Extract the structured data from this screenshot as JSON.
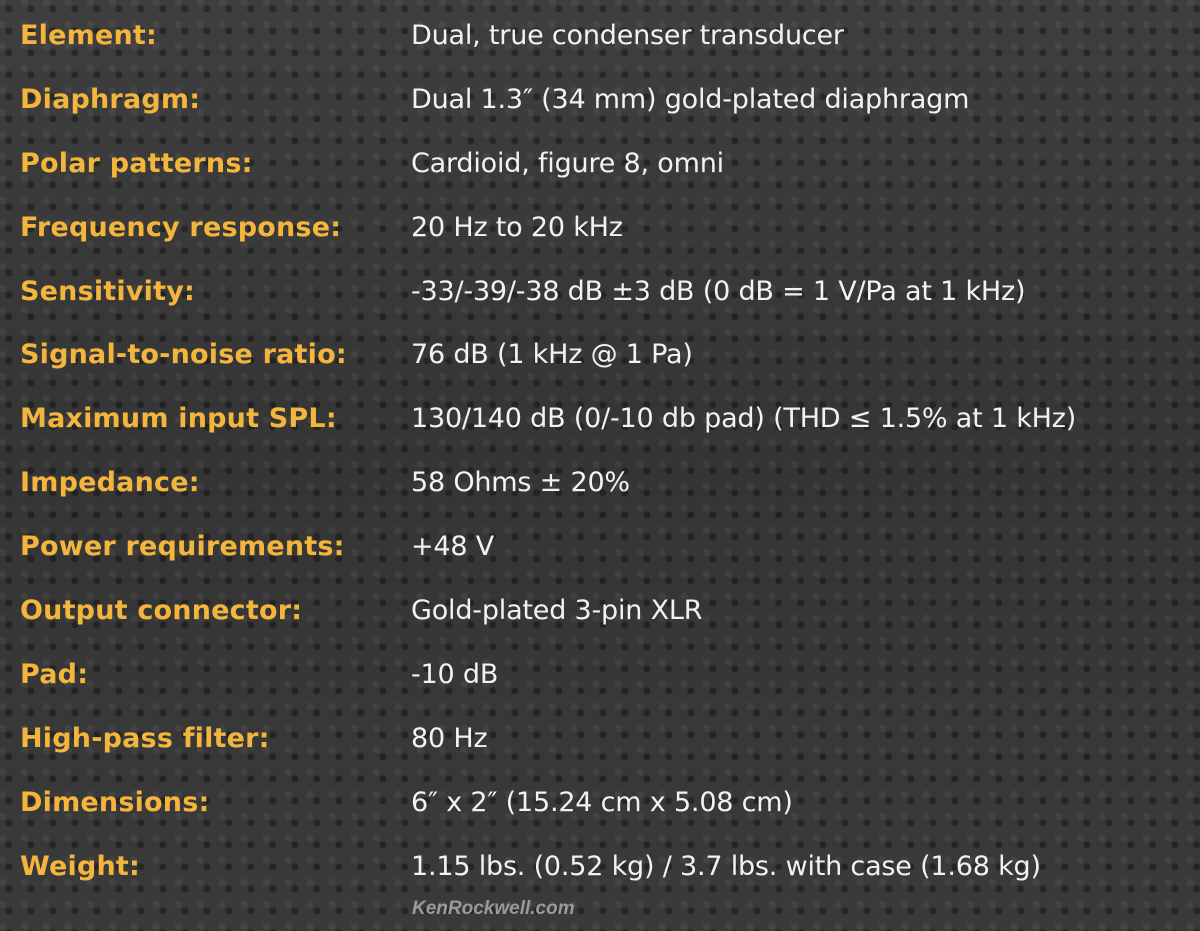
{
  "specs": [
    {
      "label": "Element:",
      "value": "Dual, true condenser transducer"
    },
    {
      "label": "Diaphragm:",
      "value": "Dual 1.3″ (34 mm) gold-plated diaphragm"
    },
    {
      "label": "Polar patterns:",
      "value": "Cardioid, figure 8, omni"
    },
    {
      "label": "Frequency response:",
      "value": "20 Hz to 20 kHz"
    },
    {
      "label": "Sensitivity:",
      "value": "-33/-39/-38 dB ±3 dB  (0 dB = 1 V/Pa at 1 kHz)"
    },
    {
      "label": "Signal-to-noise ratio:",
      "value": "76 dB (1 kHz @ 1 Pa)"
    },
    {
      "label": "Maximum input SPL:",
      "value": "130/140 dB (0/-10 db pad)  (THD ≤ 1.5% at 1 kHz)"
    },
    {
      "label": "Impedance:",
      "value": "58 Ohms ± 20%"
    },
    {
      "label": "Power requirements:",
      "value": "+48 V"
    },
    {
      "label": "Output connector:",
      "value": "Gold-plated 3-pin XLR"
    },
    {
      "label": "Pad:",
      "value": "-10 dB"
    },
    {
      "label": "High-pass filter:",
      "value": "80 Hz"
    },
    {
      "label": "Dimensions:",
      "value": "6″ x 2″ (15.24 cm x 5.08 cm)"
    },
    {
      "label": "Weight:",
      "value": "1.15 lbs. (0.52 kg) / 3.7 lbs. with case (1.68 kg)"
    }
  ],
  "watermark": "KenRockwell.com",
  "colors": {
    "label": "#f3b53c",
    "value": "#f2f2f2",
    "background": "#3b3b3b"
  }
}
